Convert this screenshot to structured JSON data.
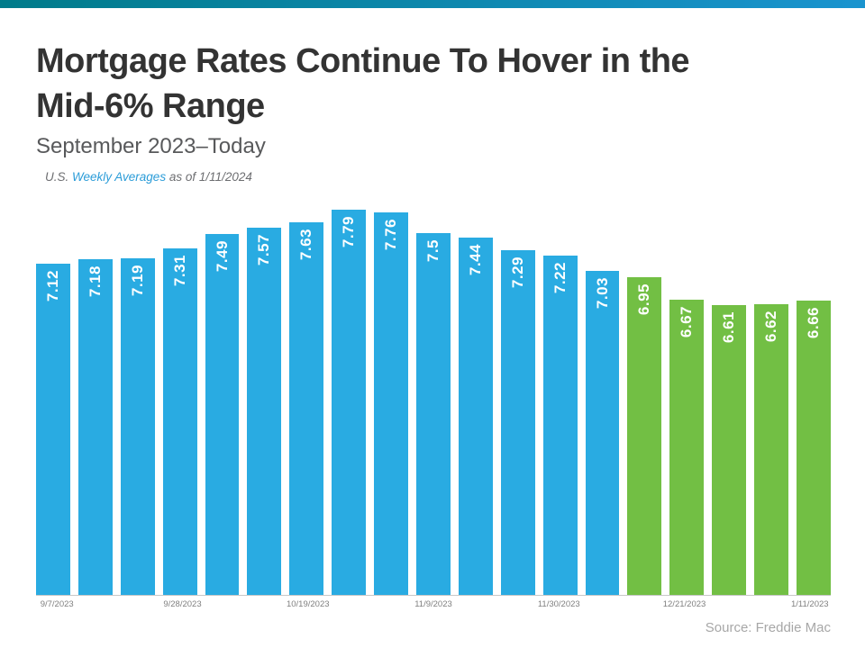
{
  "header": {
    "title_line1": "Mortgage Rates Continue To Hover in the",
    "title_line2": "Mid-6% Range",
    "subtitle": "September 2023–Today",
    "note_prefix": "U.S. ",
    "note_link": "Weekly Averages",
    "note_suffix": " as of 1/11/2024"
  },
  "footer": {
    "source": "Source: Freddie Mac"
  },
  "colors": {
    "bar_blue": "#29abe2",
    "bar_green": "#72bf44",
    "accent_strip_left": "#007b8a",
    "accent_strip_right": "#1a94cf"
  },
  "chart_data": {
    "type": "bar",
    "title": "Mortgage Rates Continue To Hover in the Mid-6% Range",
    "subtitle": "September 2023–Today",
    "values": [
      "7.12",
      "7.18",
      "7.19",
      "7.31",
      "7.49",
      "7.57",
      "7.63",
      "7.79",
      "7.76",
      "7.5",
      "7.44",
      "7.29",
      "7.22",
      "7.03",
      "6.95",
      "6.67",
      "6.61",
      "6.62",
      "6.66"
    ],
    "green_from_index": 14,
    "ylim": [
      3,
      8
    ],
    "grid": false,
    "legend": "none",
    "value_labels": "inside-top, rotated vertical, white bold",
    "x_ticks": [
      {
        "bar_index": 0,
        "label": "9/7/2023"
      },
      {
        "bar_index": 3,
        "label": "9/28/2023"
      },
      {
        "bar_index": 6,
        "label": "10/19/2023"
      },
      {
        "bar_index": 9,
        "label": "11/9/2023"
      },
      {
        "bar_index": 12,
        "label": "11/30/2023"
      },
      {
        "bar_index": 15,
        "label": "12/21/2023"
      },
      {
        "bar_index": 18,
        "label": "1/11/2023"
      }
    ]
  }
}
